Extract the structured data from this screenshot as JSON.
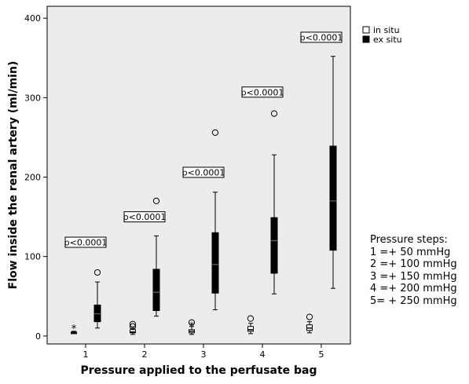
{
  "chart_data": {
    "type": "boxplot",
    "xlabel": "Pressure applied to the perfusate bag",
    "ylabel": "Flow inside the renal artery (ml/min)",
    "categories": [
      "1",
      "2",
      "3",
      "4",
      "5"
    ],
    "ylim": [
      -10,
      415
    ],
    "yticks": [
      0,
      100,
      200,
      300,
      400
    ],
    "grid": false,
    "legend_position": "right",
    "colors": {
      "in_situ": "#ffffff",
      "ex_situ": "#000000",
      "plot_bg": "#ececec"
    },
    "series": [
      {
        "name": "in situ",
        "boxes": [
          {
            "category": "1",
            "min": 3,
            "q1": 3,
            "median": 4,
            "q3": 5,
            "max": 6,
            "outliers": [],
            "extremes": [
              10
            ]
          },
          {
            "category": "2",
            "min": 2,
            "q1": 4,
            "median": 5,
            "q3": 8,
            "max": 10,
            "outliers": [
              12,
              15
            ],
            "extremes": []
          },
          {
            "category": "3",
            "min": 2,
            "q1": 4,
            "median": 6,
            "q3": 8,
            "max": 12,
            "outliers": [
              17
            ],
            "extremes": [
              13
            ]
          },
          {
            "category": "4",
            "min": 3,
            "q1": 6,
            "median": 8,
            "q3": 12,
            "max": 16,
            "outliers": [
              22
            ],
            "extremes": []
          },
          {
            "category": "5",
            "min": 4,
            "q1": 7,
            "median": 10,
            "q3": 14,
            "max": 18,
            "outliers": [
              24
            ],
            "extremes": []
          }
        ]
      },
      {
        "name": "ex situ",
        "boxes": [
          {
            "category": "1",
            "min": 10,
            "q1": 18,
            "median": 28,
            "q3": 39,
            "max": 68,
            "outliers": [
              80
            ],
            "extremes": []
          },
          {
            "category": "2",
            "min": 25,
            "q1": 32,
            "median": 55,
            "q3": 84,
            "max": 126,
            "outliers": [
              170
            ],
            "extremes": []
          },
          {
            "category": "3",
            "min": 33,
            "q1": 54,
            "median": 90,
            "q3": 130,
            "max": 181,
            "outliers": [
              256
            ],
            "extremes": []
          },
          {
            "category": "4",
            "min": 53,
            "q1": 79,
            "median": 120,
            "q3": 149,
            "max": 228,
            "outliers": [
              280
            ],
            "extremes": []
          },
          {
            "category": "5",
            "min": 60,
            "q1": 108,
            "median": 170,
            "q3": 239,
            "max": 352,
            "outliers": [],
            "extremes": []
          }
        ]
      }
    ],
    "annotations": [
      {
        "text": "p<0.0001",
        "category": "1",
        "y": 118
      },
      {
        "text": "p<0.0001",
        "category": "2",
        "y": 150
      },
      {
        "text": "p<0.0001",
        "category": "3",
        "y": 206
      },
      {
        "text": "p<0.0001",
        "category": "4",
        "y": 307
      },
      {
        "text": "p<0.0001",
        "category": "5",
        "y": 376
      }
    ]
  },
  "side_note": {
    "title": "Pressure steps:",
    "lines": [
      "1 =+ 50 mmHg",
      "2 =+ 100 mmHg",
      "3 =+ 150 mmHg",
      "4 =+ 200 mmHg",
      "5= + 250 mmHg"
    ]
  }
}
